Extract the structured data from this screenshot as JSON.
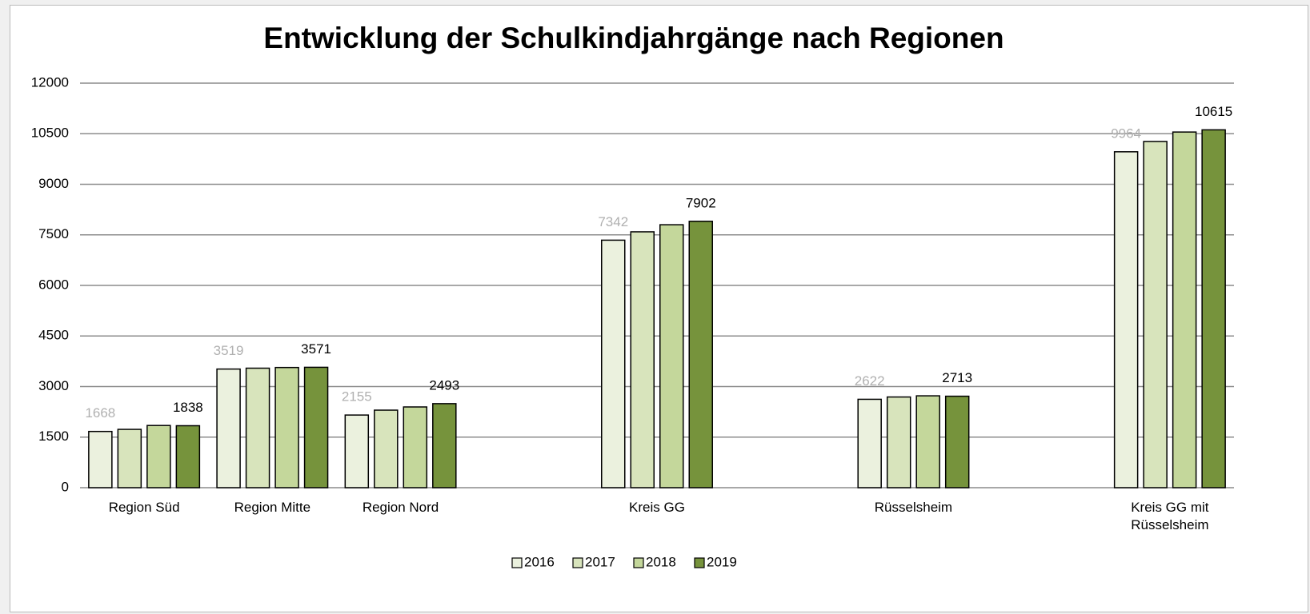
{
  "chart_data": {
    "type": "bar",
    "title": "Entwicklung der Schulkindjahrgänge nach Regionen",
    "categories": [
      "Region Süd",
      "Region Mitte",
      "Region Nord",
      null,
      "Kreis GG",
      null,
      "Rüsselsheim",
      null,
      "Kreis GG mit Rüsselsheim"
    ],
    "series": [
      {
        "name": "2016",
        "color": "#ebf1de",
        "show_labels": true,
        "label_color": "#b0b0b0",
        "values": [
          1668,
          3519,
          2155,
          null,
          7342,
          null,
          2622,
          null,
          9964
        ]
      },
      {
        "name": "2017",
        "color": "#d8e4bc",
        "show_labels": false,
        "values": [
          1730,
          3545,
          2300,
          null,
          7590,
          null,
          2690,
          null,
          10270
        ]
      },
      {
        "name": "2018",
        "color": "#c4d79b",
        "show_labels": false,
        "values": [
          1845,
          3565,
          2395,
          null,
          7800,
          null,
          2725,
          null,
          10550
        ]
      },
      {
        "name": "2019",
        "color": "#76933c",
        "show_labels": true,
        "label_color": "#000000",
        "values": [
          1838,
          3571,
          2493,
          null,
          7902,
          null,
          2713,
          null,
          10615
        ]
      }
    ],
    "ylim": [
      0,
      12000
    ],
    "yticks": [
      0,
      1500,
      3000,
      4500,
      6000,
      7500,
      9000,
      10500,
      12000
    ],
    "grid": true,
    "legend": "bottom"
  }
}
